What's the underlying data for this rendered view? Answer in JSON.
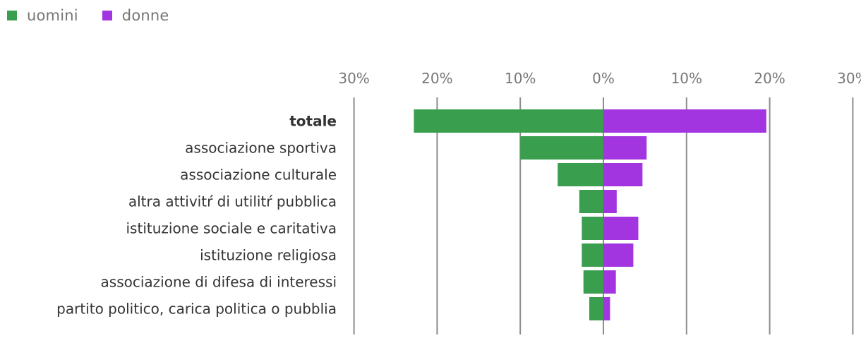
{
  "chart_data": {
    "type": "bar",
    "orientation": "horizontal-diverging",
    "categories": [
      "totale",
      "associazione sportiva",
      "associazione culturale",
      "altra attivitŕ di utilitŕ pubblica",
      "istituzione sociale e caritativa",
      "istituzione religiosa",
      "associazione di difesa di interessi",
      "partito politico, carica politica o pubblia"
    ],
    "series": [
      {
        "name": "uomini",
        "color": "#3a9e4f",
        "side": "left",
        "values": [
          22.8,
          10.0,
          5.5,
          2.9,
          2.6,
          2.6,
          2.4,
          1.7
        ]
      },
      {
        "name": "donne",
        "color": "#a235e0",
        "side": "right",
        "values": [
          19.6,
          5.2,
          4.7,
          1.6,
          4.2,
          3.6,
          1.5,
          0.8
        ]
      }
    ],
    "xlim": [
      -30,
      30
    ],
    "ticks": [
      -30,
      -20,
      -10,
      0,
      10,
      20,
      30
    ],
    "tick_labels": [
      "30%",
      "20%",
      "10%",
      "0%",
      "10%",
      "20%",
      "30%"
    ],
    "bold_category": "totale",
    "legend_position": "top-left",
    "grid": true
  }
}
